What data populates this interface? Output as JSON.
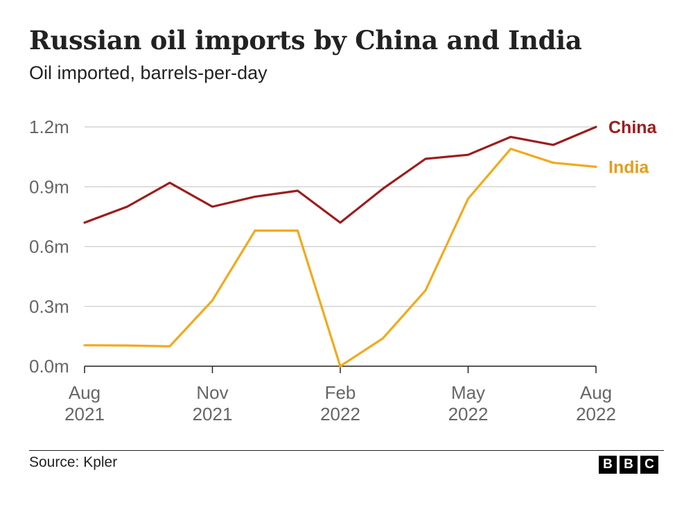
{
  "header": {
    "title": "Russian oil imports by China and India",
    "subtitle": "Oil imported, barrels-per-day"
  },
  "footer": {
    "source": "Source: Kpler",
    "logo_letters": [
      "B",
      "B",
      "C"
    ]
  },
  "chart_data": {
    "type": "line",
    "title": "Russian oil imports by China and India",
    "subtitle": "Oil imported, barrels-per-day",
    "x": [
      "2021-08",
      "2021-09",
      "2021-10",
      "2021-11",
      "2021-12",
      "2022-01",
      "2022-02",
      "2022-03",
      "2022-04",
      "2022-05",
      "2022-06",
      "2022-07",
      "2022-08"
    ],
    "x_ticks": [
      {
        "index": 0,
        "line1": "Aug",
        "line2": "2021"
      },
      {
        "index": 3,
        "line1": "Nov",
        "line2": "2021"
      },
      {
        "index": 6,
        "line1": "Feb",
        "line2": "2022"
      },
      {
        "index": 9,
        "line1": "May",
        "line2": "2022"
      },
      {
        "index": 12,
        "line1": "Aug",
        "line2": "2022"
      }
    ],
    "y_ticks": [
      {
        "value": 0.0,
        "label": "0.0m"
      },
      {
        "value": 0.3,
        "label": "0.3m"
      },
      {
        "value": 0.6,
        "label": "0.6m"
      },
      {
        "value": 0.9,
        "label": "0.9m"
      },
      {
        "value": 1.2,
        "label": "1.2m"
      }
    ],
    "ylim": [
      0,
      1.2
    ],
    "grid": true,
    "legend": "direct labels at line ends (right)",
    "series": [
      {
        "name": "China",
        "color": "#9c1d1d",
        "values": [
          0.72,
          0.8,
          0.92,
          0.8,
          0.85,
          0.88,
          0.72,
          0.89,
          1.04,
          1.06,
          1.15,
          1.11,
          1.2
        ]
      },
      {
        "name": "India",
        "color": "#f2a91b",
        "label_color": "#e39d1f",
        "values": [
          0.105,
          0.104,
          0.1,
          0.33,
          0.68,
          0.68,
          0.0,
          0.14,
          0.38,
          0.84,
          1.09,
          1.02,
          1.0
        ]
      }
    ]
  }
}
